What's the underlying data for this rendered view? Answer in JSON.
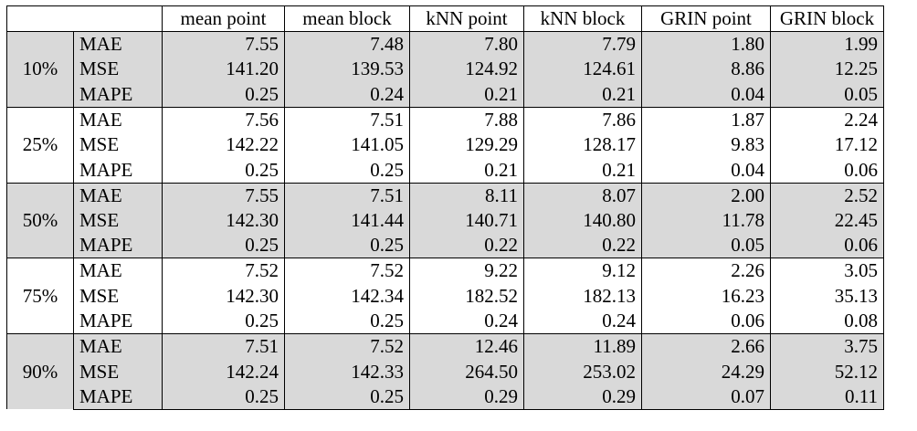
{
  "table": {
    "header": [
      "",
      "mean point",
      "mean block",
      "kNN point",
      "kNN block",
      "GRIN point",
      "GRIN block"
    ],
    "groups": [
      {
        "label": "10%",
        "shaded": true,
        "rows": [
          {
            "metric": "MAE",
            "values": [
              "7.55",
              "7.48",
              "7.80",
              "7.79",
              "1.80",
              "1.99"
            ]
          },
          {
            "metric": "MSE",
            "values": [
              "141.20",
              "139.53",
              "124.92",
              "124.61",
              "8.86",
              "12.25"
            ]
          },
          {
            "metric": "MAPE",
            "values": [
              "0.25",
              "0.24",
              "0.21",
              "0.21",
              "0.04",
              "0.05"
            ]
          }
        ]
      },
      {
        "label": "25%",
        "shaded": false,
        "rows": [
          {
            "metric": "MAE",
            "values": [
              "7.56",
              "7.51",
              "7.88",
              "7.86",
              "1.87",
              "2.24"
            ]
          },
          {
            "metric": "MSE",
            "values": [
              "142.22",
              "141.05",
              "129.29",
              "128.17",
              "9.83",
              "17.12"
            ]
          },
          {
            "metric": "MAPE",
            "values": [
              "0.25",
              "0.25",
              "0.21",
              "0.21",
              "0.04",
              "0.06"
            ]
          }
        ]
      },
      {
        "label": "50%",
        "shaded": true,
        "rows": [
          {
            "metric": "MAE",
            "values": [
              "7.55",
              "7.51",
              "8.11",
              "8.07",
              "2.00",
              "2.52"
            ]
          },
          {
            "metric": "MSE",
            "values": [
              "142.30",
              "141.44",
              "140.71",
              "140.80",
              "11.78",
              "22.45"
            ]
          },
          {
            "metric": "MAPE",
            "values": [
              "0.25",
              "0.25",
              "0.22",
              "0.22",
              "0.05",
              "0.06"
            ]
          }
        ]
      },
      {
        "label": "75%",
        "shaded": false,
        "rows": [
          {
            "metric": "MAE",
            "values": [
              "7.52",
              "7.52",
              "9.22",
              "9.12",
              "2.26",
              "3.05"
            ]
          },
          {
            "metric": "MSE",
            "values": [
              "142.30",
              "142.34",
              "182.52",
              "182.13",
              "16.23",
              "35.13"
            ]
          },
          {
            "metric": "MAPE",
            "values": [
              "0.25",
              "0.25",
              "0.24",
              "0.24",
              "0.06",
              "0.08"
            ]
          }
        ]
      },
      {
        "label": "90%",
        "shaded": true,
        "rows": [
          {
            "metric": "MAE",
            "values": [
              "7.51",
              "7.52",
              "12.46",
              "11.89",
              "2.66",
              "3.75"
            ]
          },
          {
            "metric": "MSE",
            "values": [
              "142.24",
              "142.33",
              "264.50",
              "253.02",
              "24.29",
              "52.12"
            ]
          },
          {
            "metric": "MAPE",
            "values": [
              "0.25",
              "0.25",
              "0.29",
              "0.29",
              "0.07",
              "0.11"
            ]
          }
        ]
      }
    ]
  }
}
